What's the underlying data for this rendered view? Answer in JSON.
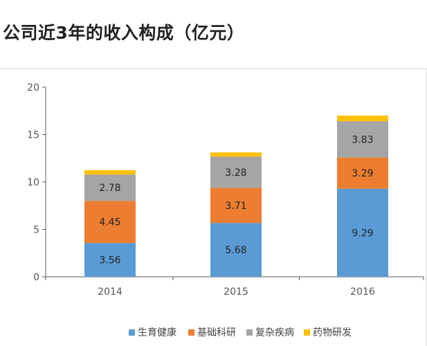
{
  "header": {
    "title": "公司近3年的收入构成（亿元）"
  },
  "chart_data": {
    "type": "bar",
    "stacked": true,
    "categories": [
      "2014",
      "2015",
      "2016"
    ],
    "series": [
      {
        "name": "生育健康",
        "values": [
          3.56,
          5.68,
          9.29
        ],
        "color": "#5b9bd5",
        "show_labels": true
      },
      {
        "name": "基础科研",
        "values": [
          4.45,
          3.71,
          3.29
        ],
        "color": "#ed7d31",
        "show_labels": true
      },
      {
        "name": "复杂疾病",
        "values": [
          2.78,
          3.28,
          3.83
        ],
        "color": "#a5a5a5",
        "show_labels": true
      },
      {
        "name": "药物研发",
        "values": [
          0.45,
          0.45,
          0.6
        ],
        "color": "#ffc000",
        "show_labels": false
      }
    ],
    "ylim": [
      0,
      20
    ],
    "yticks": [
      0,
      5,
      10,
      15,
      20
    ],
    "grid": false,
    "legend": "bottom-center",
    "xlabel": "",
    "ylabel": ""
  }
}
